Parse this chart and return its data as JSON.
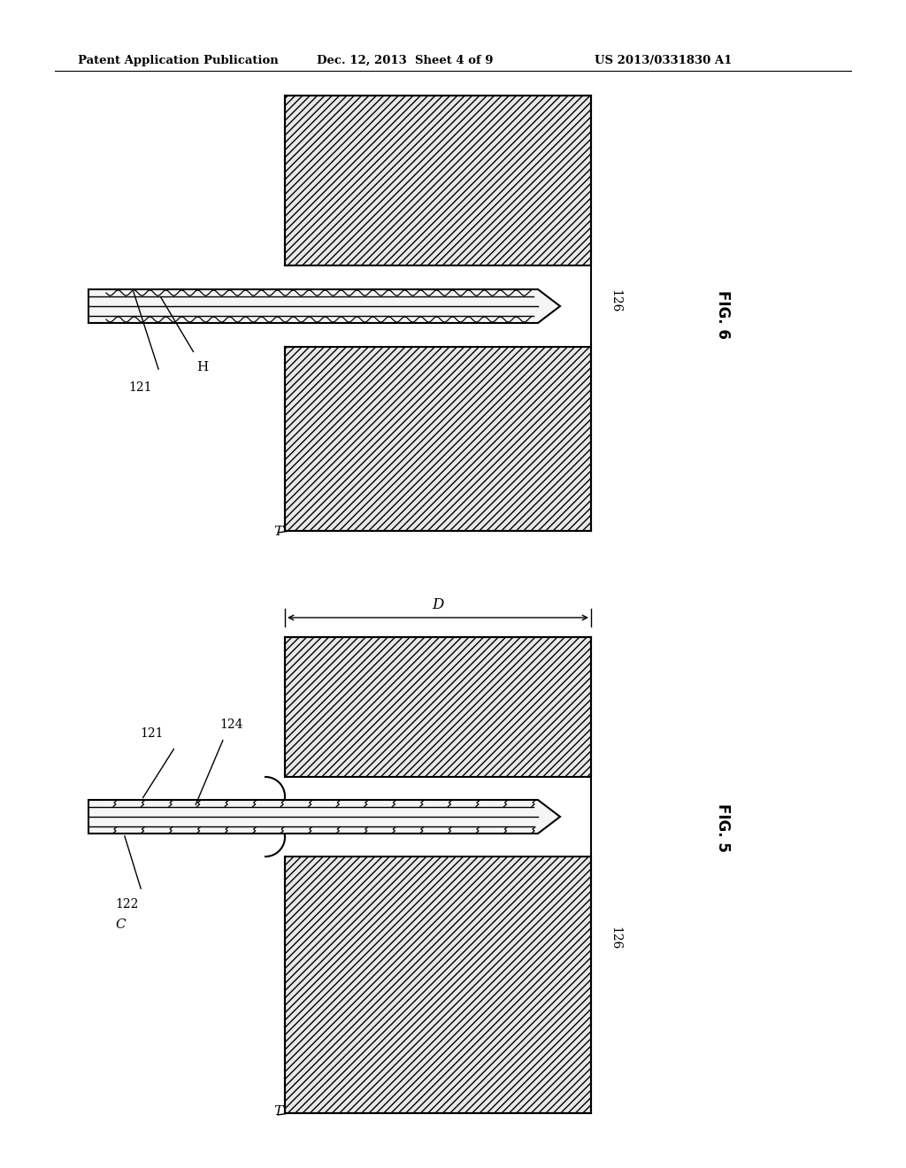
{
  "bg_color": "#ffffff",
  "line_color": "#000000",
  "header_text": "Patent Application Publication",
  "header_date": "Dec. 12, 2013  Sheet 4 of 9",
  "header_patent": "US 2013/0331830 A1",
  "fig6_label": "FIG. 6",
  "fig5_label": "FIG. 5",
  "label_121_fig6": "121",
  "label_H": "H",
  "label_126_fig6": "126",
  "label_T_fig6": "T",
  "label_121_fig5": "121",
  "label_124": "124",
  "label_122": "122",
  "label_C": "C",
  "label_126_fig5": "126",
  "label_T_fig5": "T",
  "label_D": "D",
  "hatch_pattern": "////",
  "hatch_color": "#aaaaaa",
  "tissue_facecolor": "#e8e8e8"
}
